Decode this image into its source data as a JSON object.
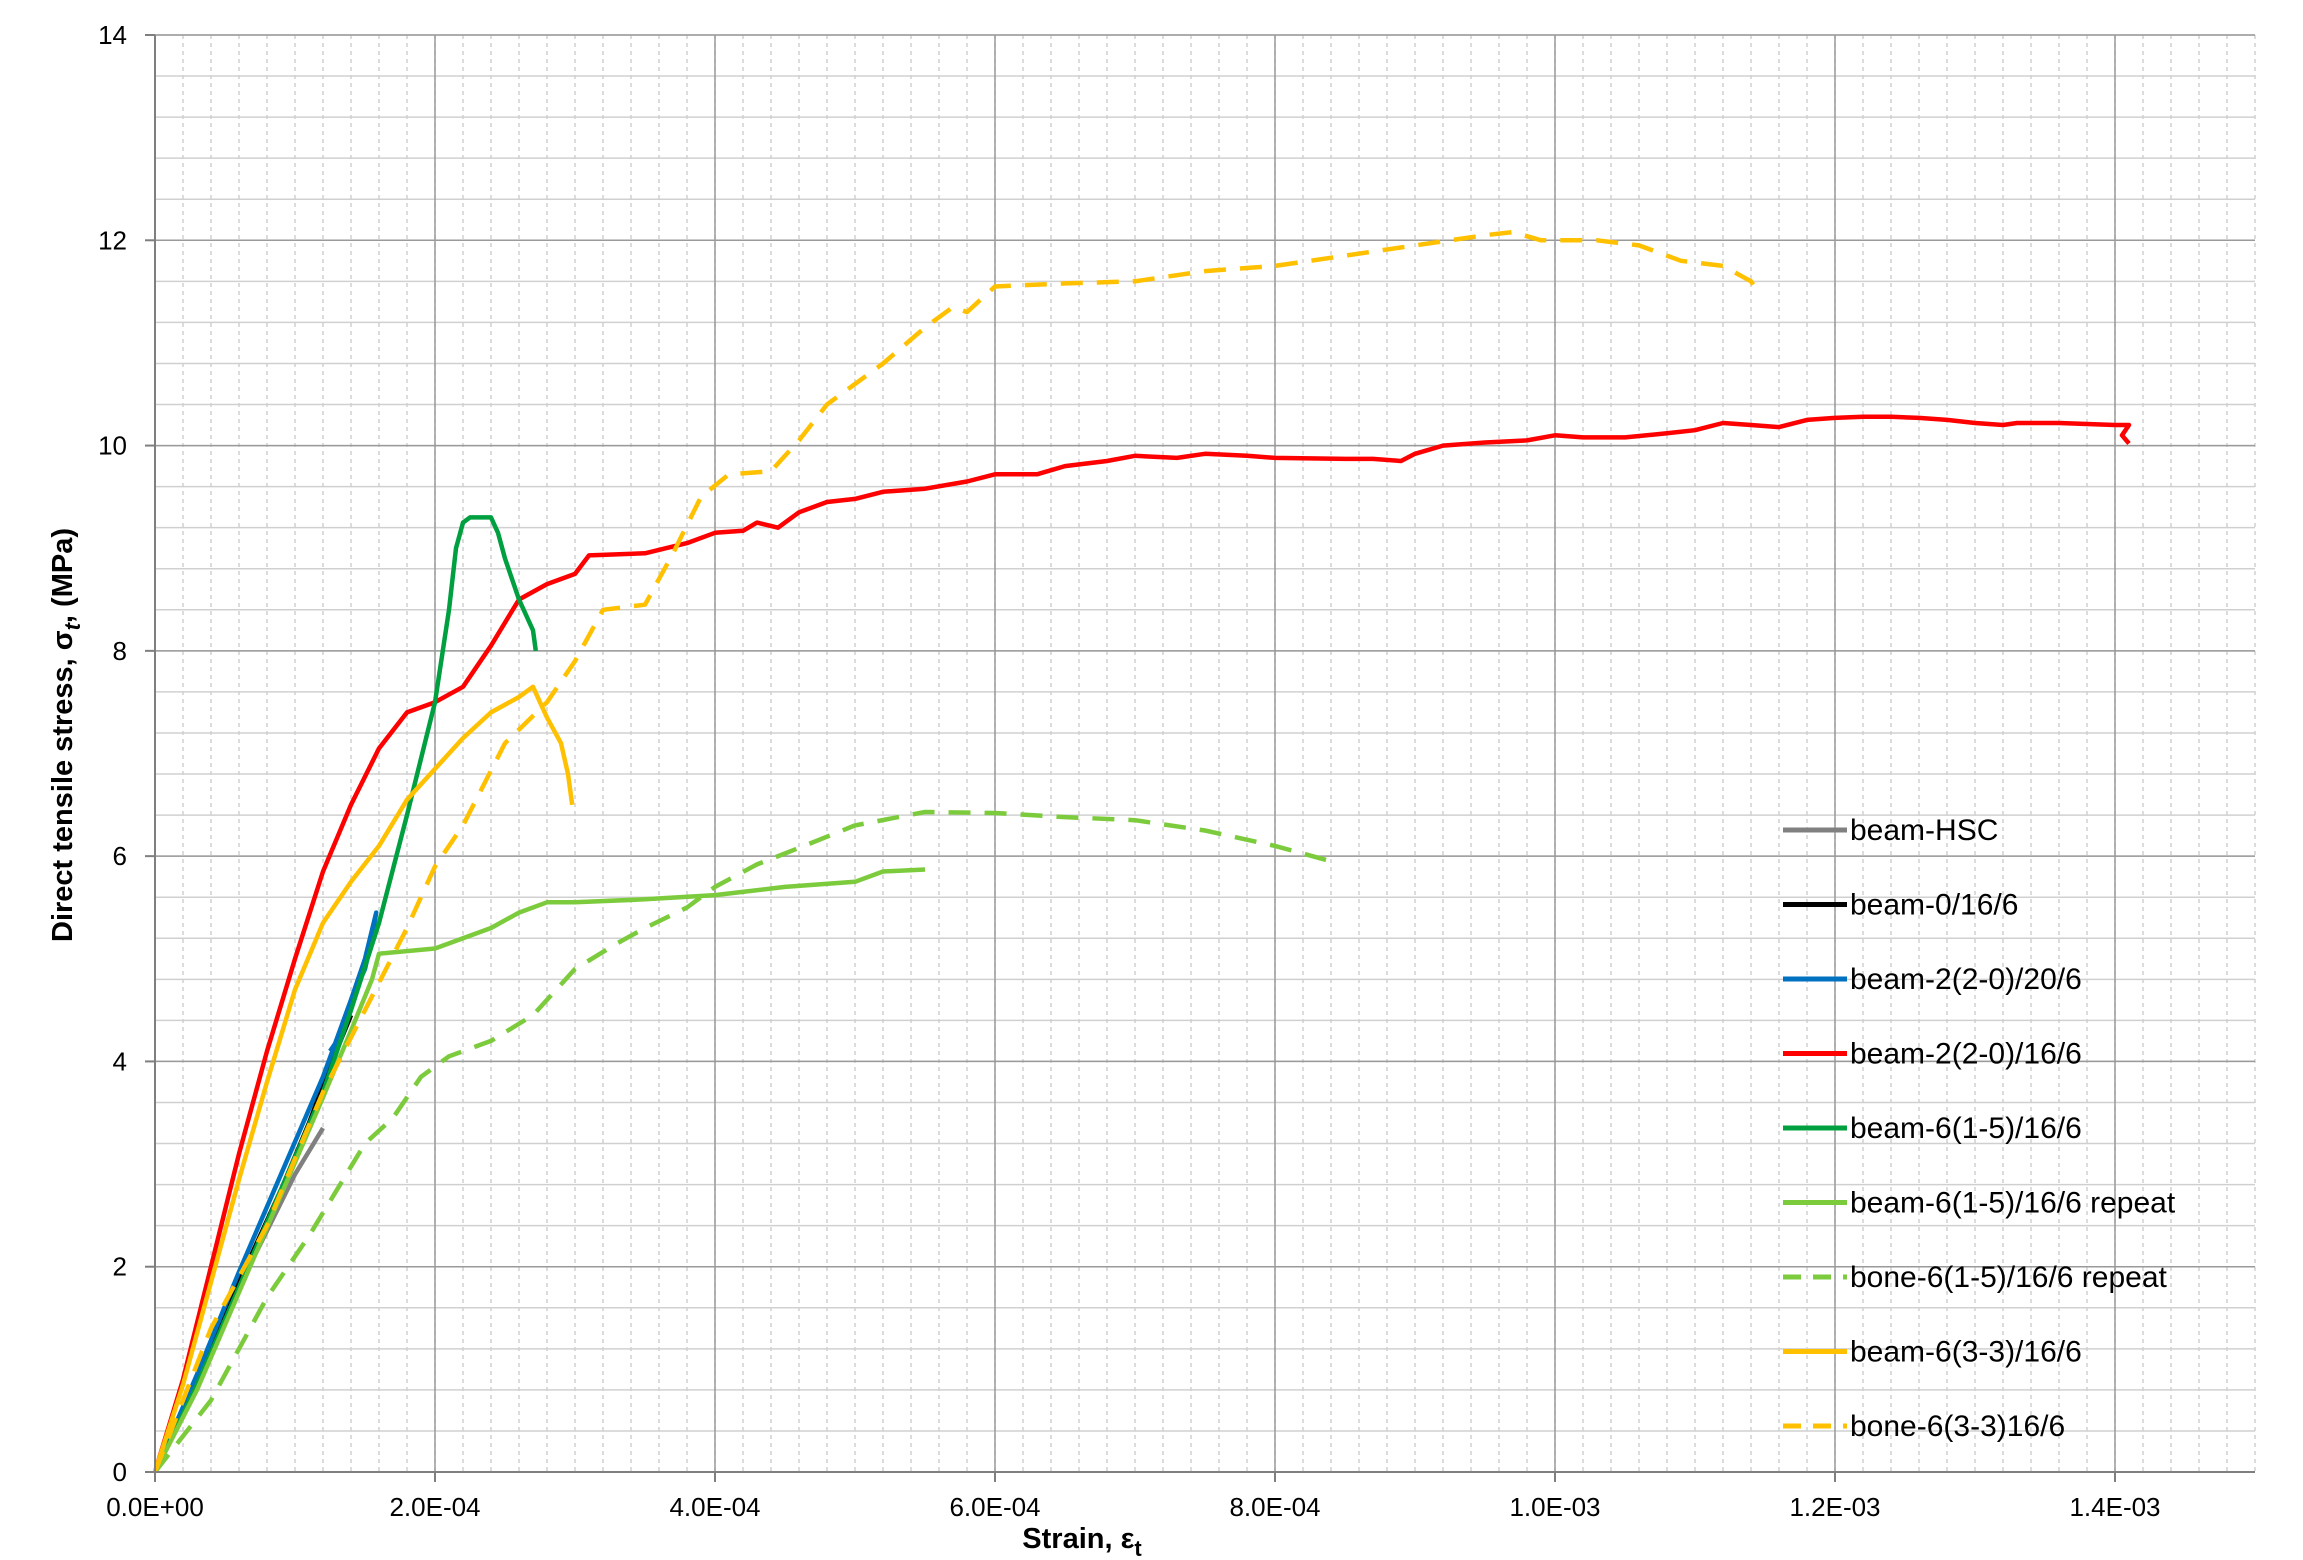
{
  "chart_data": {
    "type": "line",
    "title": "",
    "xlabel": "Strain, ε",
    "xlabel_sub": "t",
    "ylabel": "Direct tensile stress, σ",
    "ylabel_sub": "t",
    "ylabel_unit": ", (MPa)",
    "xlim": [
      0,
      0.0015
    ],
    "ylim": [
      0,
      14
    ],
    "x_ticks": [
      0,
      0.0002,
      0.0004,
      0.0006,
      0.0008,
      0.001,
      0.0012,
      0.0014
    ],
    "x_tick_labels": [
      "0.0E+00",
      "2.0E-04",
      "4.0E-04",
      "6.0E-04",
      "8.0E-04",
      "1.0E-03",
      "1.2E-03",
      "1.4E-03"
    ],
    "y_ticks": [
      0,
      2,
      4,
      6,
      8,
      10,
      12,
      14
    ],
    "y_tick_labels": [
      "0",
      "2",
      "4",
      "6",
      "8",
      "10",
      "12",
      "14"
    ],
    "grid": true,
    "legend_position": "right",
    "series": [
      {
        "name": "beam-HSC",
        "color": "#808080",
        "dash": "solid",
        "points": [
          [
            0,
            0
          ],
          [
            2e-05,
            0.6
          ],
          [
            4e-05,
            1.2
          ],
          [
            6e-05,
            1.8
          ],
          [
            8e-05,
            2.35
          ],
          [
            0.0001,
            2.9
          ],
          [
            0.00012,
            3.35
          ]
        ]
      },
      {
        "name": "beam-0/16/6",
        "color": "#000000",
        "dash": "solid",
        "points": [
          [
            0,
            0
          ],
          [
            3e-05,
            0.9
          ],
          [
            6e-05,
            1.85
          ],
          [
            9e-05,
            2.75
          ],
          [
            0.00011,
            3.4
          ],
          [
            0.000125,
            3.95
          ],
          [
            0.00014,
            4.45
          ]
        ]
      },
      {
        "name": "beam-2(2-0)/20/6",
        "color": "#0070C0",
        "dash": "solid",
        "points": [
          [
            0,
            0
          ],
          [
            3e-05,
            0.95
          ],
          [
            6e-05,
            1.95
          ],
          [
            9e-05,
            2.9
          ],
          [
            0.00012,
            3.85
          ],
          [
            0.00014,
            4.6
          ],
          [
            0.00015,
            5.0
          ],
          [
            0.000158,
            5.45
          ],
          [
            0.000155,
            5.2
          ],
          [
            0.00015,
            4.9
          ],
          [
            0.00014,
            4.6
          ],
          [
            0.00013,
            4.2
          ],
          [
            0.000125,
            4.1
          ]
        ]
      },
      {
        "name": "beam-2(2-0)/16/6",
        "color": "#FF0000",
        "dash": "solid",
        "points": [
          [
            0,
            0
          ],
          [
            2e-05,
            0.9
          ],
          [
            4e-05,
            2.0
          ],
          [
            6e-05,
            3.1
          ],
          [
            8e-05,
            4.1
          ],
          [
            0.0001,
            5.0
          ],
          [
            0.00012,
            5.85
          ],
          [
            0.00014,
            6.5
          ],
          [
            0.00016,
            7.05
          ],
          [
            0.00018,
            7.4
          ],
          [
            0.0002,
            7.5
          ],
          [
            0.00022,
            7.65
          ],
          [
            0.00024,
            8.05
          ],
          [
            0.00026,
            8.5
          ],
          [
            0.00028,
            8.65
          ],
          [
            0.0003,
            8.75
          ],
          [
            0.00031,
            8.93
          ],
          [
            0.00035,
            8.95
          ],
          [
            0.00038,
            9.05
          ],
          [
            0.0004,
            9.15
          ],
          [
            0.00042,
            9.17
          ],
          [
            0.00043,
            9.25
          ],
          [
            0.000445,
            9.2
          ],
          [
            0.00046,
            9.35
          ],
          [
            0.00048,
            9.45
          ],
          [
            0.0005,
            9.48
          ],
          [
            0.00052,
            9.55
          ],
          [
            0.00055,
            9.58
          ],
          [
            0.00058,
            9.65
          ],
          [
            0.0006,
            9.72
          ],
          [
            0.00063,
            9.72
          ],
          [
            0.00065,
            9.8
          ],
          [
            0.00068,
            9.85
          ],
          [
            0.0007,
            9.9
          ],
          [
            0.00073,
            9.88
          ],
          [
            0.00075,
            9.92
          ],
          [
            0.00078,
            9.9
          ],
          [
            0.0008,
            9.88
          ],
          [
            0.00085,
            9.87
          ],
          [
            0.00087,
            9.87
          ],
          [
            0.00089,
            9.85
          ],
          [
            0.0009,
            9.92
          ],
          [
            0.00092,
            10.0
          ],
          [
            0.00095,
            10.03
          ],
          [
            0.00098,
            10.05
          ],
          [
            0.001,
            10.1
          ],
          [
            0.00102,
            10.08
          ],
          [
            0.00105,
            10.08
          ],
          [
            0.00108,
            10.12
          ],
          [
            0.0011,
            10.15
          ],
          [
            0.00112,
            10.22
          ],
          [
            0.00114,
            10.2
          ],
          [
            0.00116,
            10.18
          ],
          [
            0.00118,
            10.25
          ],
          [
            0.0012,
            10.27
          ],
          [
            0.00122,
            10.28
          ],
          [
            0.00124,
            10.28
          ],
          [
            0.00126,
            10.27
          ],
          [
            0.00128,
            10.25
          ],
          [
            0.0013,
            10.22
          ],
          [
            0.00132,
            10.2
          ],
          [
            0.00133,
            10.22
          ],
          [
            0.00136,
            10.22
          ],
          [
            0.0014,
            10.2
          ],
          [
            0.00141,
            10.2
          ],
          [
            0.001405,
            10.1
          ],
          [
            0.00141,
            10.02
          ]
        ]
      },
      {
        "name": "beam-6(1-5)/16/6",
        "color": "#00A040",
        "dash": "solid",
        "points": [
          [
            0,
            0
          ],
          [
            3e-05,
            0.85
          ],
          [
            6e-05,
            1.8
          ],
          [
            9e-05,
            2.75
          ],
          [
            0.00012,
            3.7
          ],
          [
            0.00014,
            4.5
          ],
          [
            0.00016,
            5.35
          ],
          [
            0.00018,
            6.4
          ],
          [
            0.0002,
            7.5
          ],
          [
            0.00021,
            8.4
          ],
          [
            0.000215,
            9.0
          ],
          [
            0.00022,
            9.25
          ],
          [
            0.000225,
            9.3
          ],
          [
            0.00024,
            9.3
          ],
          [
            0.000245,
            9.15
          ],
          [
            0.00025,
            8.9
          ],
          [
            0.00026,
            8.5
          ],
          [
            0.00027,
            8.2
          ],
          [
            0.000272,
            8.0
          ]
        ]
      },
      {
        "name": "beam-6(1-5)/16/6 repeat",
        "color": "#7CCB3C",
        "dash": "solid",
        "points": [
          [
            0,
            0
          ],
          [
            3e-05,
            0.8
          ],
          [
            6e-05,
            1.75
          ],
          [
            9e-05,
            2.7
          ],
          [
            0.00012,
            3.65
          ],
          [
            0.00014,
            4.3
          ],
          [
            0.000155,
            4.8
          ],
          [
            0.00016,
            5.05
          ],
          [
            0.0002,
            5.1
          ],
          [
            0.00022,
            5.2
          ],
          [
            0.00024,
            5.3
          ],
          [
            0.00026,
            5.45
          ],
          [
            0.00028,
            5.55
          ],
          [
            0.0003,
            5.55
          ],
          [
            0.00035,
            5.58
          ],
          [
            0.0004,
            5.62
          ],
          [
            0.00045,
            5.7
          ],
          [
            0.0005,
            5.75
          ],
          [
            0.00052,
            5.85
          ],
          [
            0.00055,
            5.87
          ]
        ]
      },
      {
        "name": "bone-6(1-5)/16/6 repeat",
        "color": "#7CCB3C",
        "dash": "dashed",
        "points": [
          [
            0,
            0
          ],
          [
            4e-05,
            0.7
          ],
          [
            8e-05,
            1.7
          ],
          [
            0.00011,
            2.3
          ],
          [
            0.00013,
            2.75
          ],
          [
            0.00015,
            3.2
          ],
          [
            0.00017,
            3.45
          ],
          [
            0.00019,
            3.85
          ],
          [
            0.00021,
            4.05
          ],
          [
            0.00024,
            4.2
          ],
          [
            0.00027,
            4.45
          ],
          [
            0.0003,
            4.9
          ],
          [
            0.00033,
            5.15
          ],
          [
            0.00035,
            5.3
          ],
          [
            0.00038,
            5.5
          ],
          [
            0.0004,
            5.7
          ],
          [
            0.00043,
            5.92
          ],
          [
            0.00046,
            6.08
          ],
          [
            0.0005,
            6.3
          ],
          [
            0.00055,
            6.43
          ],
          [
            0.0006,
            6.42
          ],
          [
            0.00065,
            6.38
          ],
          [
            0.0007,
            6.35
          ],
          [
            0.00075,
            6.25
          ],
          [
            0.0008,
            6.1
          ],
          [
            0.00084,
            5.95
          ]
        ]
      },
      {
        "name": "beam-6(3-3)/16/6",
        "color": "#FFC000",
        "dash": "solid",
        "points": [
          [
            0,
            0
          ],
          [
            2e-05,
            0.85
          ],
          [
            4e-05,
            1.85
          ],
          [
            6e-05,
            2.85
          ],
          [
            8e-05,
            3.8
          ],
          [
            0.0001,
            4.7
          ],
          [
            0.00012,
            5.35
          ],
          [
            0.00014,
            5.75
          ],
          [
            0.00016,
            6.1
          ],
          [
            0.00018,
            6.55
          ],
          [
            0.0002,
            6.85
          ],
          [
            0.00022,
            7.15
          ],
          [
            0.00024,
            7.4
          ],
          [
            0.00026,
            7.55
          ],
          [
            0.00027,
            7.65
          ],
          [
            0.000275,
            7.5
          ],
          [
            0.00028,
            7.35
          ],
          [
            0.00029,
            7.1
          ],
          [
            0.000295,
            6.8
          ],
          [
            0.000298,
            6.5
          ]
        ]
      },
      {
        "name": "bone-6(3-3)16/6",
        "color": "#FFC000",
        "dash": "dashed",
        "points": [
          [
            0,
            0
          ],
          [
            4e-05,
            1.4
          ],
          [
            8e-05,
            2.4
          ],
          [
            0.00012,
            3.7
          ],
          [
            0.00015,
            4.5
          ],
          [
            0.00018,
            5.3
          ],
          [
            0.0002,
            5.9
          ],
          [
            0.00022,
            6.3
          ],
          [
            0.00025,
            7.1
          ],
          [
            0.00028,
            7.5
          ],
          [
            0.0003,
            7.9
          ],
          [
            0.00032,
            8.4
          ],
          [
            0.00035,
            8.45
          ],
          [
            0.00037,
            8.95
          ],
          [
            0.00039,
            9.5
          ],
          [
            0.00041,
            9.72
          ],
          [
            0.00044,
            9.75
          ],
          [
            0.00046,
            10.05
          ],
          [
            0.00048,
            10.4
          ],
          [
            0.0005,
            10.6
          ],
          [
            0.00052,
            10.8
          ],
          [
            0.00055,
            11.15
          ],
          [
            0.00057,
            11.35
          ],
          [
            0.00058,
            11.3
          ],
          [
            0.0006,
            11.55
          ],
          [
            0.00065,
            11.58
          ],
          [
            0.0007,
            11.6
          ],
          [
            0.00075,
            11.7
          ],
          [
            0.0008,
            11.75
          ],
          [
            0.00085,
            11.85
          ],
          [
            0.0009,
            11.95
          ],
          [
            0.00095,
            12.05
          ],
          [
            0.00097,
            12.08
          ],
          [
            0.00099,
            12.0
          ],
          [
            0.00103,
            12.0
          ],
          [
            0.00106,
            11.95
          ],
          [
            0.00109,
            11.8
          ],
          [
            0.00112,
            11.75
          ],
          [
            0.00114,
            11.6
          ],
          [
            0.001145,
            11.5
          ]
        ]
      }
    ]
  }
}
